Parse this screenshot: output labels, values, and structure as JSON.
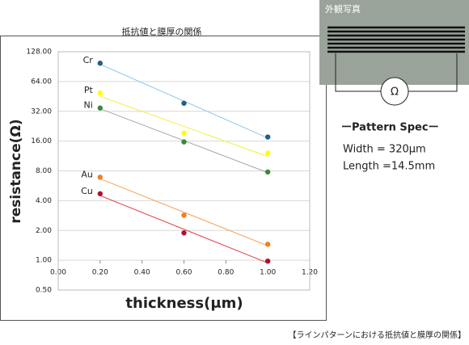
{
  "chart_data": {
    "type": "scatter",
    "title": "抵抗値と膜厚の関係",
    "x_label": "thickness(μm)",
    "y_label": "resistance(Ω)",
    "x": [
      0.2,
      0.6,
      1.0
    ],
    "series": [
      {
        "name": "Cr",
        "color": "#1f5f8b",
        "line_color": "#8ec8e8",
        "values": [
          98,
          38.6,
          17.6
        ]
      },
      {
        "name": "Pt",
        "color": "#ffff00",
        "line_color": "#f0f040",
        "values": [
          49,
          19.3,
          12.1
        ]
      },
      {
        "name": "Ni",
        "color": "#3a8a3a",
        "line_color": "#a8a8a8",
        "values": [
          34.5,
          15.7,
          7.8
        ]
      },
      {
        "name": "Au",
        "color": "#f08020",
        "line_color": "#f5a050",
        "values": [
          6.9,
          2.85,
          1.45
        ]
      },
      {
        "name": "Cu",
        "color": "#b01030",
        "line_color": "#e04040",
        "values": [
          4.7,
          1.89,
          0.98
        ]
      }
    ],
    "xlim": [
      0,
      1.2
    ],
    "xticks": [
      {
        "value": 0,
        "label": "0.00"
      },
      {
        "value": 0.2,
        "label": "0.20"
      },
      {
        "value": 0.4,
        "label": "0.40"
      },
      {
        "value": 0.6,
        "label": "0.60"
      },
      {
        "value": 0.8,
        "label": "0.80"
      },
      {
        "value": 1.0,
        "label": "1.00"
      },
      {
        "value": 1.2,
        "label": "1.20"
      }
    ],
    "ylim": [
      0.5,
      128
    ],
    "y_scale": "log",
    "grid": true,
    "trendline": true,
    "yticks": [
      {
        "value": 0.5,
        "label": "0.50"
      },
      {
        "value": 1,
        "label": "1.00"
      },
      {
        "value": 2,
        "label": "2.00"
      },
      {
        "value": 4,
        "label": "4.00"
      },
      {
        "value": 8,
        "label": "8.00"
      },
      {
        "value": 16,
        "label": "16.00"
      },
      {
        "value": 32,
        "label": "32.00"
      },
      {
        "value": 64,
        "label": "64.00"
      },
      {
        "value": 128,
        "label": "128.00"
      }
    ]
  },
  "photo": {
    "title": "外観写真",
    "symbol": "Ω"
  },
  "spec": {
    "title": "ーPattern Specー",
    "width": "Width = 320μm",
    "length": "Length =14.5mm"
  },
  "caption": "【ラインパターンにおける抵抗値と膜厚の関係】"
}
